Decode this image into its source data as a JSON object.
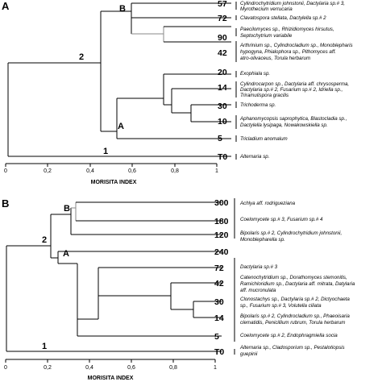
{
  "chart_data": [
    {
      "type": "dendrogram",
      "panel": "A",
      "xlabel": "MORISITA INDEX",
      "xticks": [
        "0",
        "0,2",
        "0,4",
        "0,6",
        "0,8",
        "1"
      ],
      "xlim": [
        0,
        1
      ],
      "leaves": [
        {
          "sample": "57",
          "species": [
            "Cylindrochytridium johnstonii, Dactylaria sp.# 3,",
            "Myrothecium verrucaria"
          ]
        },
        {
          "sample": "72",
          "species": [
            "Clavatospora stellata, Dactylella sp.# 2"
          ]
        },
        {
          "sample": "90",
          "species": [
            "Paecilomyces sp., Rhizidiomyces hirsutus,",
            "Septochytrium variabile"
          ]
        },
        {
          "sample": "42",
          "species": [
            "Arthrinium sp., Cylindrocladium sp., Monoblepharis",
            "hypogyna, Phialophora sp., Pithomyces aff.",
            "atro-olivaceus, Torula herbarum"
          ]
        },
        {
          "sample": "20",
          "species": [
            "Exophiala sp."
          ]
        },
        {
          "sample": "14",
          "species": [
            "Cylindrocarpon sp., Dactylaria aff. chrysosperma,",
            "Dactylaria sp.# 2, Fusarium sp.# 2, Idriella sp.,",
            "Triramulispora gracilis"
          ]
        },
        {
          "sample": "30",
          "species": [
            "Trichoderma sp."
          ]
        },
        {
          "sample": "10",
          "species": [
            "Aphanomycopsis saprophytica, Blastocladia sp.,",
            "Dactylella lysipaga, Nowakowskiella sp."
          ]
        },
        {
          "sample": "5",
          "species": [
            "Tricladium anomalum"
          ]
        },
        {
          "sample": "T0",
          "species": [
            "Alternaria sp."
          ]
        }
      ],
      "clusters": [
        {
          "label": "B",
          "members": [
            "57",
            "72",
            "90",
            "42"
          ],
          "similarity": 0.59
        },
        {
          "label": "A",
          "members": [
            "20",
            "14",
            "30",
            "10",
            "5"
          ],
          "similarity": 0.45
        },
        {
          "label": "2",
          "members": [
            "57",
            "72",
            "90",
            "42",
            "20",
            "14",
            "30",
            "10",
            "5"
          ],
          "similarity": 0.25
        },
        {
          "label": "1",
          "members": [
            "T0",
            "cluster 2"
          ],
          "similarity": 0.0
        }
      ],
      "merges": [
        {
          "members": [
            "57",
            "72"
          ],
          "similarity": 0.59
        },
        {
          "members": [
            "90",
            "42"
          ],
          "similarity": 0.75
        },
        {
          "members": [
            "57",
            "72",
            "90",
            "42"
          ],
          "similarity": 0.59
        },
        {
          "members": [
            "30",
            "10"
          ],
          "similarity": 0.87
        },
        {
          "members": [
            "14",
            "30",
            "10"
          ],
          "similarity": 0.78
        },
        {
          "members": [
            "20",
            "14",
            "30",
            "10"
          ],
          "similarity": 0.74
        },
        {
          "members": [
            "20",
            "14",
            "30",
            "10",
            "5"
          ],
          "similarity": 0.45
        }
      ]
    },
    {
      "type": "dendrogram",
      "panel": "B",
      "xlabel": "MORISITA INDEX",
      "xticks": [
        "0",
        "0,2",
        "0,4",
        "0,6",
        "0,8",
        "1"
      ],
      "xlim": [
        0,
        1
      ],
      "leaves": [
        {
          "sample": "300",
          "species": [
            "Achlya aff. rodrigueziana"
          ]
        },
        {
          "sample": "180",
          "species": [
            "Coelomycete sp.# 3, Fusarium sp.# 4"
          ]
        },
        {
          "sample": "120",
          "species": [
            "Bipolaris sp.# 2, Cylindrochytridium johnstonii,",
            "Monoblepharella sp."
          ]
        },
        {
          "sample": "240",
          "species": []
        },
        {
          "sample": "72",
          "species": [
            "Dactylaria sp.# 3"
          ]
        },
        {
          "sample": "42",
          "species": [
            "Catenochytridium sp., Dorathomyces stemonitis,",
            "Ramichloridium sp., Dactylaria aff. mitrata, Datylaria",
            "aff. mucronulata"
          ]
        },
        {
          "sample": "30",
          "species": [
            "Clonostachys sp., Dactylaria sp.# 2, Dictyochaeta",
            "sp., Fusarium sp.# 3, Volutella ciliata"
          ]
        },
        {
          "sample": "14",
          "species": [
            "Bipolaris sp.# 2, Cylindrocladium sp., Phaeoisaria",
            "clematidis, Penicillium rubrum, Torula herbarum"
          ]
        },
        {
          "sample": "5",
          "species": [
            "Coelomycete sp.# 2, Endophragmiella socia"
          ]
        },
        {
          "sample": "T0",
          "species": [
            "Alternaria sp., Cladosporium sp., Pestalotiopsis",
            "guepinii"
          ]
        }
      ],
      "clusters": [
        {
          "label": "B",
          "members": [
            "300",
            "180",
            "120"
          ],
          "similarity": 0.32
        },
        {
          "label": "A",
          "members": [
            "240",
            "72",
            "42",
            "30",
            "14",
            "5"
          ],
          "similarity": 0.24
        },
        {
          "label": "2",
          "members": [
            "300",
            "180",
            "120",
            "240",
            "72",
            "42",
            "30",
            "14",
            "5"
          ],
          "similarity": 0.2
        },
        {
          "label": "1",
          "members": [
            "T0",
            "cluster 2"
          ],
          "similarity": 0.0
        }
      ],
      "merges": [
        {
          "members": [
            "300",
            "180"
          ],
          "similarity": 0.35
        },
        {
          "members": [
            "300",
            "180",
            "120"
          ],
          "similarity": 0.32
        },
        {
          "members": [
            "30",
            "14"
          ],
          "similarity": 0.88
        },
        {
          "members": [
            "42",
            "30",
            "14"
          ],
          "similarity": 0.8
        },
        {
          "members": [
            "72",
            "42",
            "30",
            "14"
          ],
          "similarity": 0.65
        },
        {
          "members": [
            "72",
            "42",
            "30",
            "14",
            "5"
          ],
          "similarity": 0.38
        },
        {
          "members": [
            "240",
            "72",
            "42",
            "30",
            "14",
            "5"
          ],
          "similarity": 0.24
        }
      ]
    }
  ]
}
